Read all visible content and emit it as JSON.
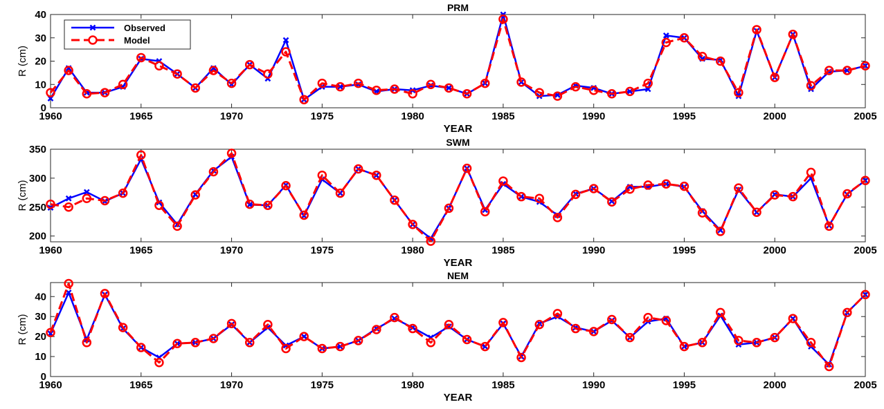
{
  "chart_data": [
    {
      "type": "line",
      "title": "PRM",
      "xlabel": "YEAR",
      "ylabel": "R (cm)",
      "xlim": [
        1960,
        2005
      ],
      "ylim": [
        0,
        40
      ],
      "xticks": [
        "1960",
        "1965",
        "1970",
        "1975",
        "1980",
        "1985",
        "1990",
        "1995",
        "2000",
        "2005"
      ],
      "yticks": [
        "0",
        "10",
        "20",
        "30",
        "40"
      ],
      "grid": false,
      "legend": "top-left",
      "x": [
        1960,
        1961,
        1962,
        1963,
        1964,
        1965,
        1966,
        1967,
        1968,
        1969,
        1970,
        1971,
        1972,
        1973,
        1974,
        1975,
        1976,
        1977,
        1978,
        1979,
        1980,
        1981,
        1982,
        1983,
        1984,
        1985,
        1986,
        1987,
        1988,
        1989,
        1990,
        1991,
        1992,
        1993,
        1994,
        1995,
        1996,
        1997,
        1998,
        1999,
        2000,
        2001,
        2002,
        2003,
        2004,
        2005
      ],
      "series": [
        {
          "name": "Observed",
          "color": "#0000ff",
          "marker": "x",
          "line": "solid",
          "values": [
            4,
            17,
            6.5,
            6.5,
            9,
            21,
            20,
            14.5,
            8.5,
            17,
            10,
            18.5,
            12.5,
            29,
            3.5,
            9,
            9,
            10,
            7,
            8,
            7.5,
            9.5,
            8.5,
            6,
            10.5,
            40,
            11,
            5,
            5.5,
            9.5,
            8.5,
            6,
            7,
            8,
            31,
            30,
            21,
            20.5,
            5,
            33,
            13,
            31.5,
            8,
            15.5,
            16,
            18
          ]
        },
        {
          "name": "Model",
          "color": "#ff0000",
          "marker": "o",
          "line": "dashed",
          "values": [
            6.5,
            16,
            6,
            6.5,
            10,
            21.5,
            18,
            14.5,
            8.5,
            16,
            10.5,
            18.5,
            14.5,
            24,
            3.5,
            10.5,
            9,
            10.5,
            7.5,
            8,
            6,
            10,
            8.5,
            6,
            10.5,
            38,
            11,
            6.5,
            5,
            9,
            7.5,
            6,
            7,
            10.5,
            28,
            30,
            22,
            20,
            6.5,
            33.5,
            13,
            31.5,
            9.5,
            16,
            16,
            18
          ]
        }
      ]
    },
    {
      "type": "line",
      "title": "SWM",
      "xlabel": "YEAR",
      "ylabel": "R (cm)",
      "xlim": [
        1960,
        2005
      ],
      "ylim": [
        190,
        350
      ],
      "xticks": [
        "1960",
        "1965",
        "1970",
        "1975",
        "1980",
        "1985",
        "1990",
        "1995",
        "2000",
        "2005"
      ],
      "yticks": [
        "200",
        "250",
        "300",
        "350"
      ],
      "grid": false,
      "x": [
        1960,
        1961,
        1962,
        1963,
        1964,
        1965,
        1966,
        1967,
        1968,
        1969,
        1970,
        1971,
        1972,
        1973,
        1974,
        1975,
        1976,
        1977,
        1978,
        1979,
        1980,
        1981,
        1982,
        1983,
        1984,
        1985,
        1986,
        1987,
        1988,
        1989,
        1990,
        1991,
        1992,
        1993,
        1994,
        1995,
        1996,
        1997,
        1998,
        1999,
        2000,
        2001,
        2002,
        2003,
        2004,
        2005
      ],
      "series": [
        {
          "name": "Observed",
          "color": "#0000ff",
          "marker": "x",
          "line": "solid",
          "values": [
            249,
            265,
            276,
            260,
            274,
            333,
            258,
            220,
            272,
            313,
            337,
            254,
            253,
            288,
            235,
            298,
            274,
            316,
            305,
            262,
            220,
            196,
            248,
            317,
            245,
            290,
            268,
            259,
            236,
            273,
            282,
            260,
            285,
            285,
            290,
            285,
            243,
            210,
            280,
            241,
            272,
            268,
            300,
            218,
            272,
            296
          ]
        },
        {
          "name": "Model",
          "color": "#ff0000",
          "marker": "o",
          "line": "dashed",
          "values": [
            255,
            250,
            265,
            261,
            274,
            340,
            253,
            217,
            271,
            311,
            343,
            255,
            253,
            287,
            236,
            305,
            274,
            316,
            305,
            262,
            220,
            191,
            248,
            317,
            242,
            295,
            268,
            265,
            232,
            272,
            282,
            259,
            281,
            288,
            290,
            286,
            240,
            208,
            283,
            241,
            271,
            268,
            310,
            217,
            273,
            296
          ]
        }
      ]
    },
    {
      "type": "line",
      "title": "NEM",
      "xlabel": "YEAR",
      "ylabel": "R (cm)",
      "xlim": [
        1960,
        2005
      ],
      "ylim": [
        0,
        47
      ],
      "xticks": [
        "1960",
        "1965",
        "1970",
        "1975",
        "1980",
        "1985",
        "1990",
        "1995",
        "2000",
        "2005"
      ],
      "yticks": [
        "0",
        "10",
        "20",
        "30",
        "40"
      ],
      "grid": false,
      "x": [
        1960,
        1961,
        1962,
        1963,
        1964,
        1965,
        1966,
        1967,
        1968,
        1969,
        1970,
        1971,
        1972,
        1973,
        1974,
        1975,
        1976,
        1977,
        1978,
        1979,
        1980,
        1981,
        1982,
        1983,
        1984,
        1985,
        1986,
        1987,
        1988,
        1989,
        1990,
        1991,
        1992,
        1993,
        1994,
        1995,
        1996,
        1997,
        1998,
        1999,
        2000,
        2001,
        2002,
        2003,
        2004,
        2005
      ],
      "series": [
        {
          "name": "Observed",
          "color": "#0000ff",
          "marker": "x",
          "line": "solid",
          "values": [
            21.5,
            42,
            18.5,
            41,
            24,
            14.5,
            9.5,
            16.5,
            17,
            19,
            26,
            17,
            24.5,
            15.5,
            20,
            14,
            15,
            18,
            24,
            29,
            24.5,
            19.5,
            25,
            18.5,
            15,
            26.5,
            10,
            26.5,
            30,
            24.5,
            22.5,
            28,
            19.5,
            27.5,
            29,
            15,
            17,
            30.5,
            16,
            17,
            19.5,
            29,
            15,
            6,
            32,
            41
          ]
        },
        {
          "name": "Model",
          "color": "#ff0000",
          "marker": "o",
          "line": "dashed",
          "values": [
            22,
            46.5,
            17,
            41.5,
            24.5,
            14.5,
            7,
            16.5,
            17,
            19,
            26.5,
            17,
            26,
            14,
            20,
            14,
            15,
            18,
            23.5,
            29.5,
            24,
            17,
            26,
            18.5,
            15,
            27,
            9.5,
            26,
            31.5,
            24,
            22.5,
            28.5,
            19.5,
            29.5,
            28,
            15,
            17,
            32,
            18,
            17,
            19.5,
            29,
            17,
            5,
            32,
            41
          ]
        }
      ]
    }
  ]
}
